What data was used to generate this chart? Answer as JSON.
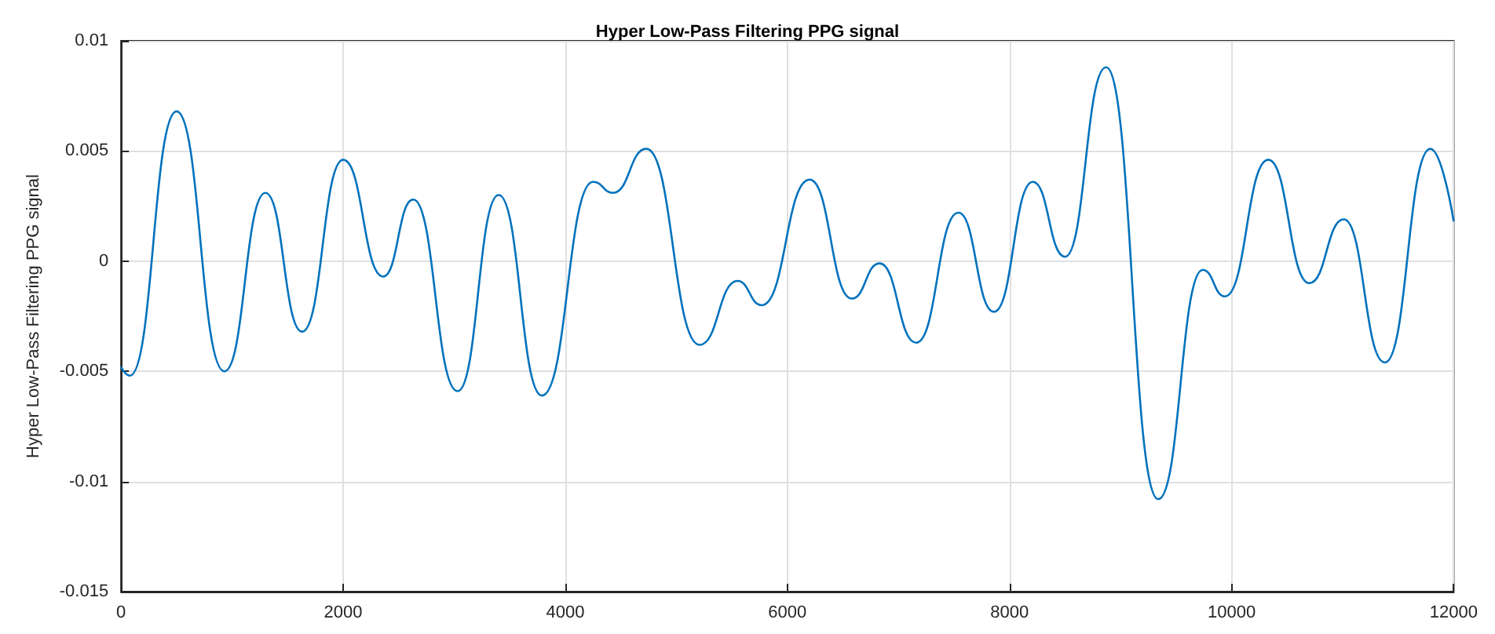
{
  "chart_data": {
    "type": "line",
    "title": "Hyper Low-Pass Filtering PPG signal",
    "ylabel": "Hyper Low-Pass Filtering PPG signal",
    "x": [
      0,
      80,
      500,
      930,
      1300,
      1630,
      2000,
      2360,
      2630,
      3030,
      3400,
      3790,
      4250,
      4430,
      4730,
      5210,
      5550,
      5770,
      6200,
      6580,
      6830,
      7160,
      7540,
      7860,
      8210,
      8500,
      8870,
      9340,
      9740,
      9940,
      10330,
      10700,
      11010,
      11380,
      11790,
      12000
    ],
    "series": [
      {
        "color": "#0072bd",
        "values": [
          -0.0048,
          -0.0052,
          0.0068,
          -0.005,
          0.0031,
          -0.0032,
          0.0046,
          -0.0007,
          0.0028,
          -0.0059,
          0.003,
          -0.0061,
          0.0036,
          0.0031,
          0.0051,
          -0.0038,
          -0.0009,
          -0.002,
          0.0037,
          -0.0017,
          -0.0001,
          -0.0037,
          0.0022,
          -0.0023,
          0.0036,
          0.0002,
          0.0088,
          -0.0108,
          -0.0004,
          -0.0016,
          0.0046,
          -0.001,
          0.0019,
          -0.0046,
          0.0051,
          0.0018
        ]
      }
    ],
    "xlim": [
      0,
      12000
    ],
    "xticks": [
      0,
      2000,
      4000,
      6000,
      8000,
      10000,
      12000
    ],
    "ylim": [
      -0.015,
      0.01
    ],
    "yticks": [
      -0.015,
      -0.01,
      -0.005,
      0,
      0.005,
      0.01
    ],
    "grid": true,
    "marker": "none",
    "line_style": "solid"
  }
}
